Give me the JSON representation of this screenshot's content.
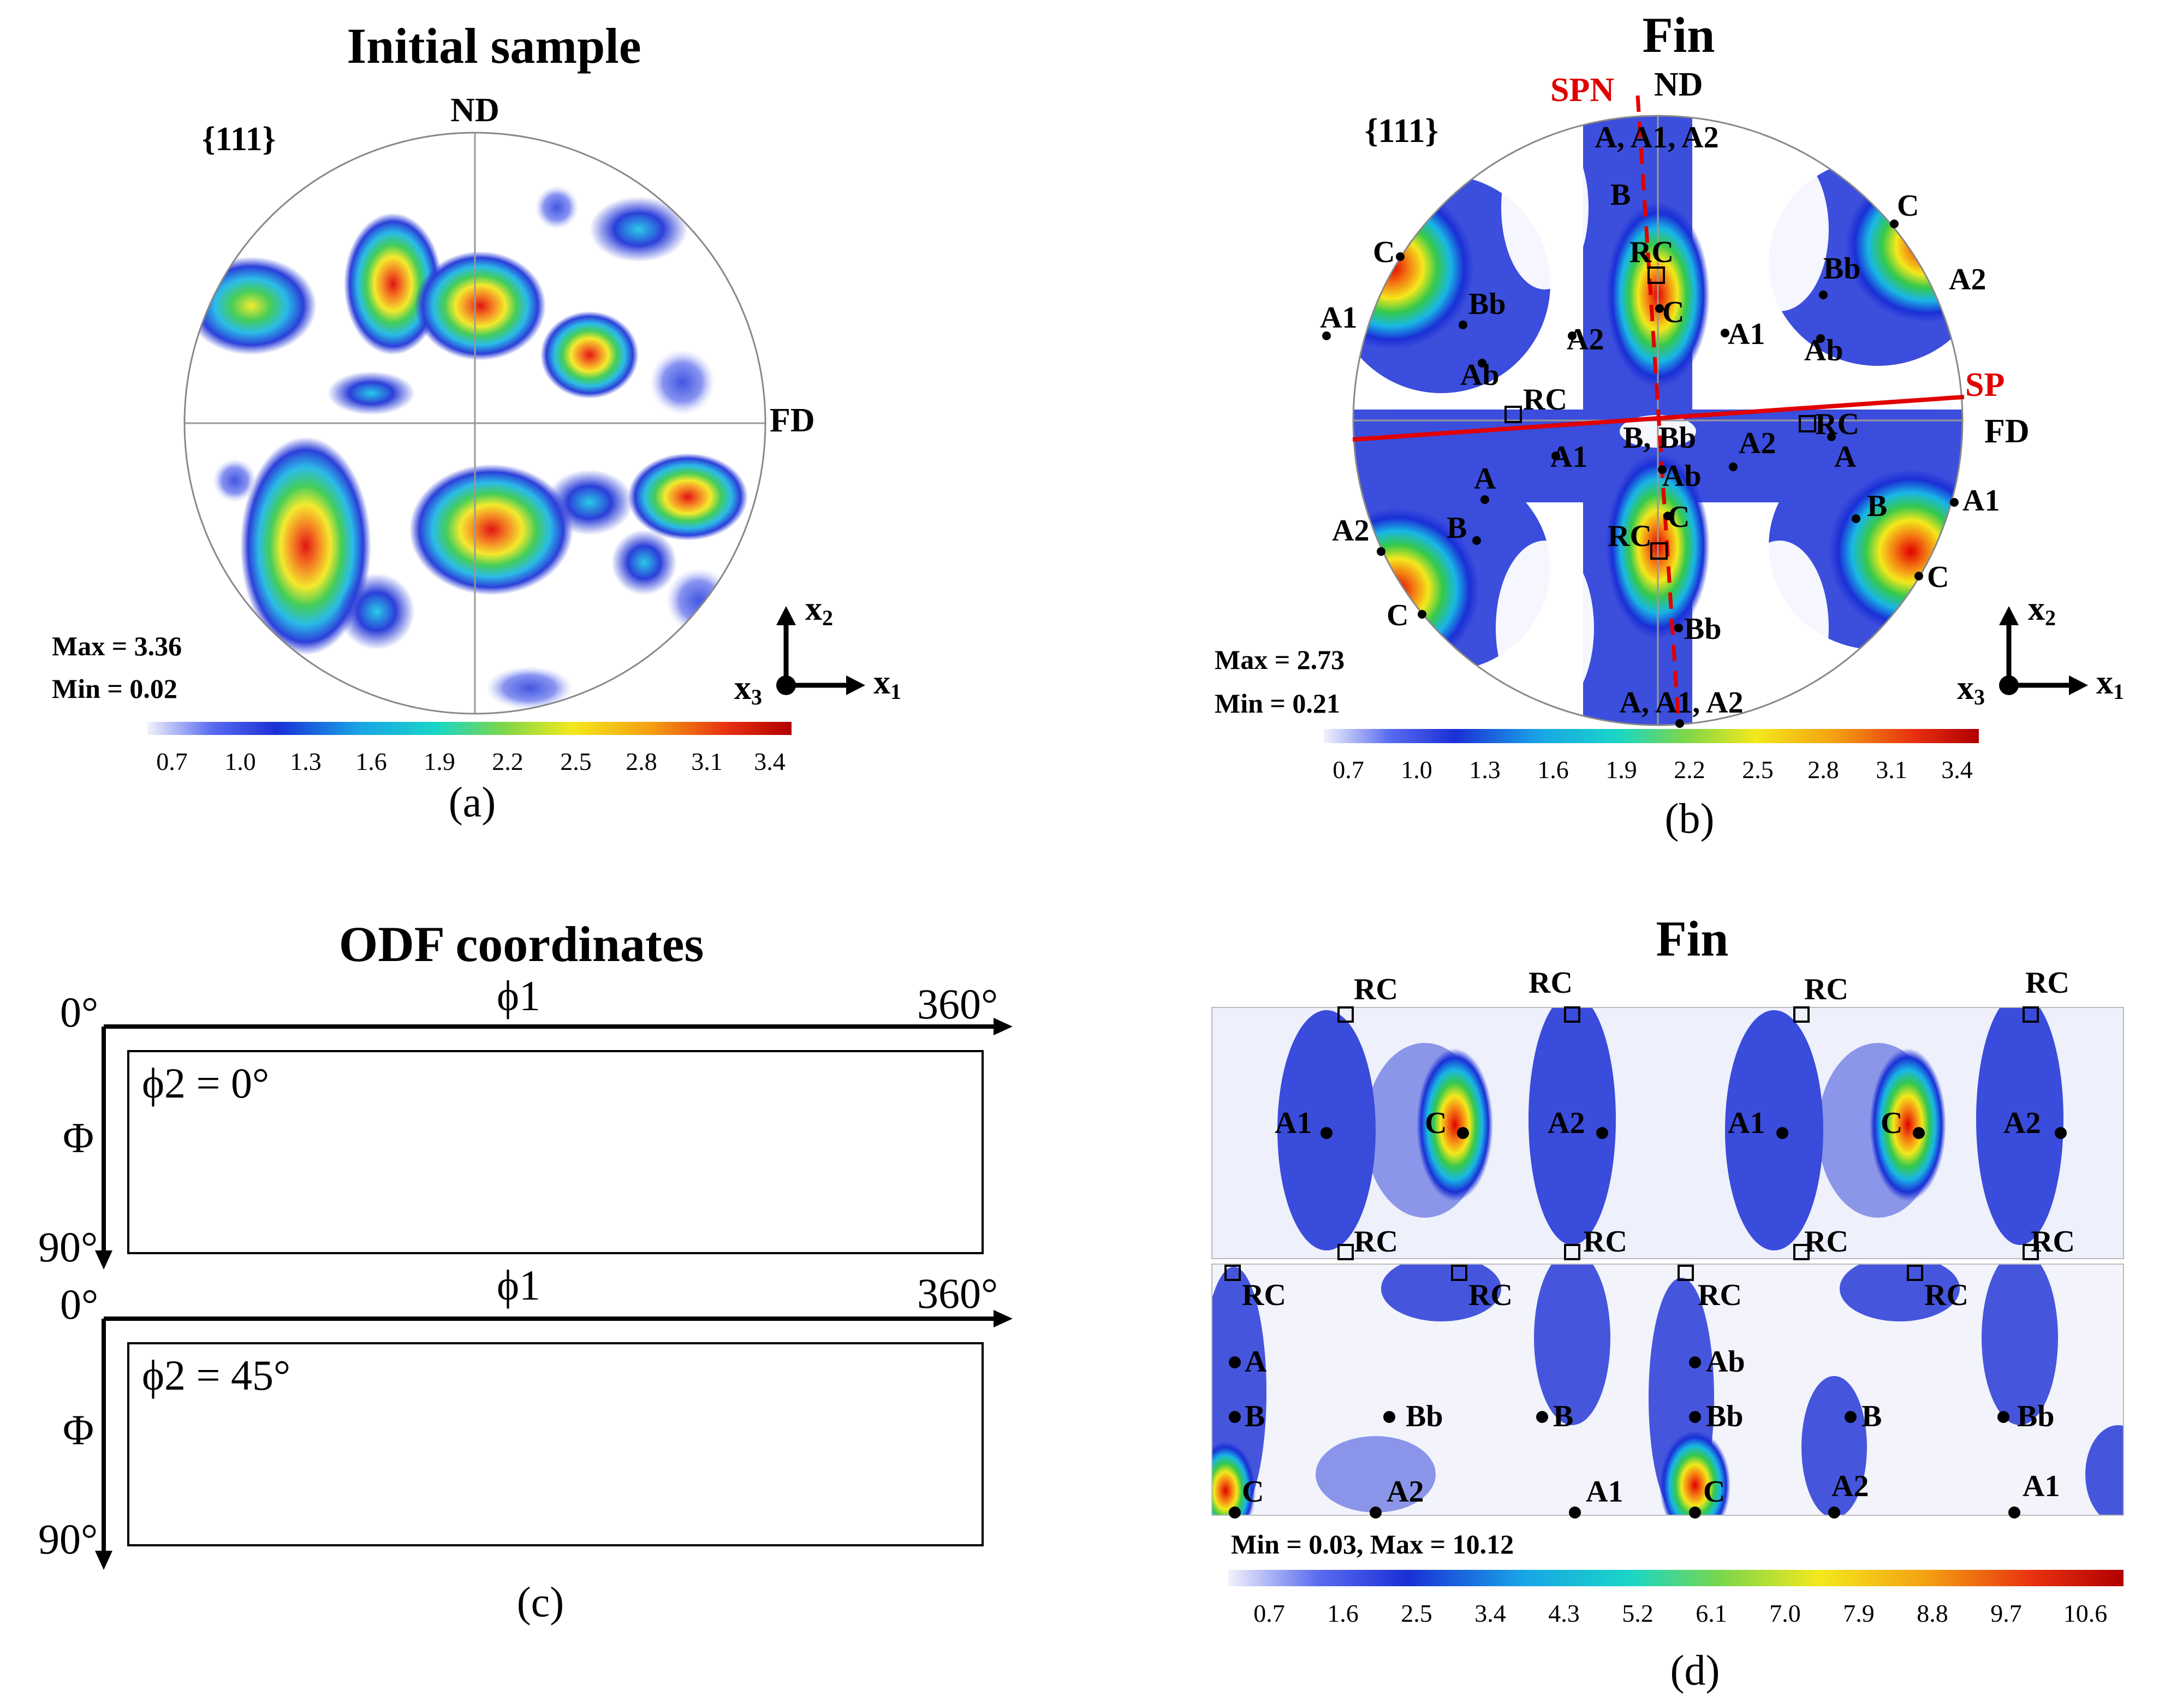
{
  "panel_a": {
    "title": "Initial sample",
    "family": "{111}",
    "nd": "ND",
    "fd": "FD",
    "stats": [
      "Max = 3.36",
      "Min = 0.02"
    ],
    "ticks": [
      "0.7",
      "1.0",
      "1.3",
      "1.6",
      "1.9",
      "2.2",
      "2.5",
      "2.8",
      "3.1",
      "3.4"
    ],
    "axes": {
      "x1": "x1",
      "x2": "x2",
      "x3": "x3"
    },
    "caption": "(a)"
  },
  "panel_b": {
    "title": "Fin",
    "family": "{111}",
    "nd": "ND",
    "fd": "FD",
    "spn": "SPN",
    "sp": "SP",
    "stats": [
      "Max = 2.73",
      "Min = 0.21"
    ],
    "ticks": [
      "0.7",
      "1.0",
      "1.3",
      "1.6",
      "1.9",
      "2.2",
      "2.5",
      "2.8",
      "3.1",
      "3.4"
    ],
    "labels": {
      "top": "A, A1, A2",
      "bottom": "A, A1, A2",
      "center": "B, Bb",
      "c": "C",
      "rc": "RC",
      "b": "B",
      "bb": "Bb",
      "a": "A",
      "a1": "A1",
      "a2": "A2",
      "ab": "Ab"
    },
    "caption": "(b)"
  },
  "panel_c": {
    "title": "ODF coordinates",
    "phi1": "ϕ1",
    "end_360": "360°",
    "start_0": "0°",
    "end_90": "90°",
    "Phi": "Φ",
    "phi2_0": "ϕ2 = 0°",
    "phi2_45": "ϕ2 = 45°",
    "caption": "(c)"
  },
  "panel_d": {
    "title": "Fin",
    "stats": "Min = 0.03, Max = 10.12",
    "ticks": [
      "0.7",
      "1.6",
      "2.5",
      "3.4",
      "4.3",
      "5.2",
      "6.1",
      "7.0",
      "7.9",
      "8.8",
      "9.7",
      "10.6"
    ],
    "labels": {
      "rc": "RC",
      "c": "C",
      "a": "A",
      "a1": "A1",
      "a2": "A2",
      "ab": "Ab",
      "b": "B",
      "bb": "Bb"
    },
    "caption": "(d)"
  },
  "colors": {
    "red": "#e00000",
    "low": "#ffffff",
    "blue": "#1a2fd6",
    "cyan": "#19c6e6",
    "green": "#35c94b",
    "yellow": "#f4e81c",
    "orange": "#f47a12",
    "darkred": "#b00000"
  }
}
